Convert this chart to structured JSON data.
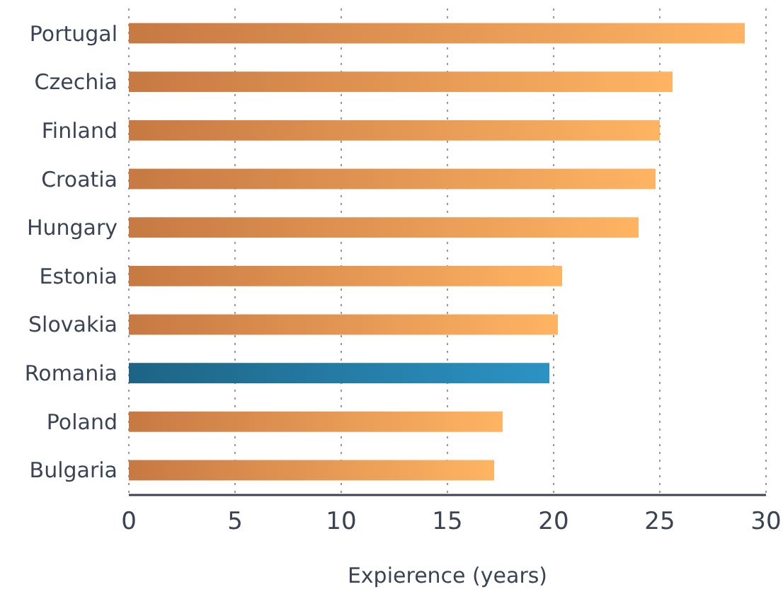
{
  "chart_data": {
    "type": "bar",
    "orientation": "horizontal",
    "xlabel": "Expierence (years)",
    "categories": [
      "Portugal",
      "Czechia",
      "Finland",
      "Croatia",
      "Hungary",
      "Estonia",
      "Slovakia",
      "Romania",
      "Poland",
      "Bulgaria"
    ],
    "values": [
      29.0,
      25.6,
      25.0,
      24.8,
      24.0,
      20.4,
      20.2,
      19.8,
      17.6,
      17.2
    ],
    "colors": [
      "#ee9150",
      "#ee9150",
      "#ee9150",
      "#ee9150",
      "#ee9150",
      "#ee9150",
      "#ee9150",
      "#23779e",
      "#ee9150",
      "#ee9150"
    ],
    "xlim": [
      0,
      30
    ],
    "xticks": [
      0,
      5,
      10,
      15,
      20,
      25,
      30
    ],
    "grid": "x"
  }
}
